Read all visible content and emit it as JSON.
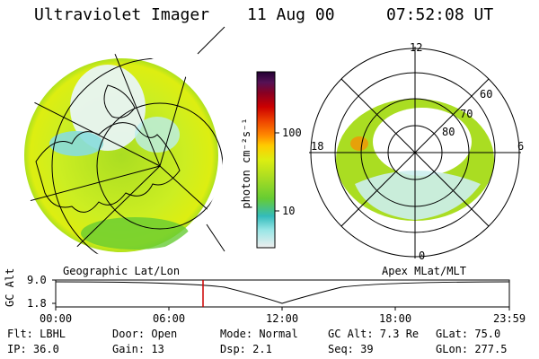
{
  "header": {
    "instrument": "Ultraviolet Imager",
    "date": "11 Aug 00",
    "time": "07:52:08 UT"
  },
  "left_panel": {
    "caption": "Geographic Lat/Lon"
  },
  "right_panel": {
    "caption": "Apex MLat/MLT",
    "mlt_labels": {
      "top": "12",
      "left": "18",
      "right": "6",
      "bottom": "0"
    },
    "lat_labels": [
      "60",
      "70",
      "80"
    ]
  },
  "colorbar": {
    "unit_label": "photon cm⁻²s⁻¹",
    "ticks": [
      "100",
      "10"
    ],
    "colors": [
      "#eeeeee",
      "#99e6e6",
      "#33bbbb",
      "#66cc33",
      "#aadd22",
      "#ddee11",
      "#ffcc00",
      "#ff8800",
      "#ee4400",
      "#cc0000",
      "#880022",
      "#551155",
      "#220033"
    ]
  },
  "timeline": {
    "axis_label": "GC Alt",
    "y_ticks": [
      "9.0",
      "1.8"
    ],
    "x_ticks": [
      "00:00",
      "06:00",
      "12:00",
      "18:00",
      "23:59"
    ],
    "marker_color": "#cc0000"
  },
  "status": {
    "row1": [
      "Flt: LBHL",
      "Door: Open",
      "Mode: Normal",
      "GC Alt: 7.3 Re",
      "GLat:  75.0"
    ],
    "row2": [
      "IP: 36.0",
      "Gain: 13",
      "Dsp:    2.1",
      "Seq: 39",
      "GLon: 277.5"
    ]
  }
}
